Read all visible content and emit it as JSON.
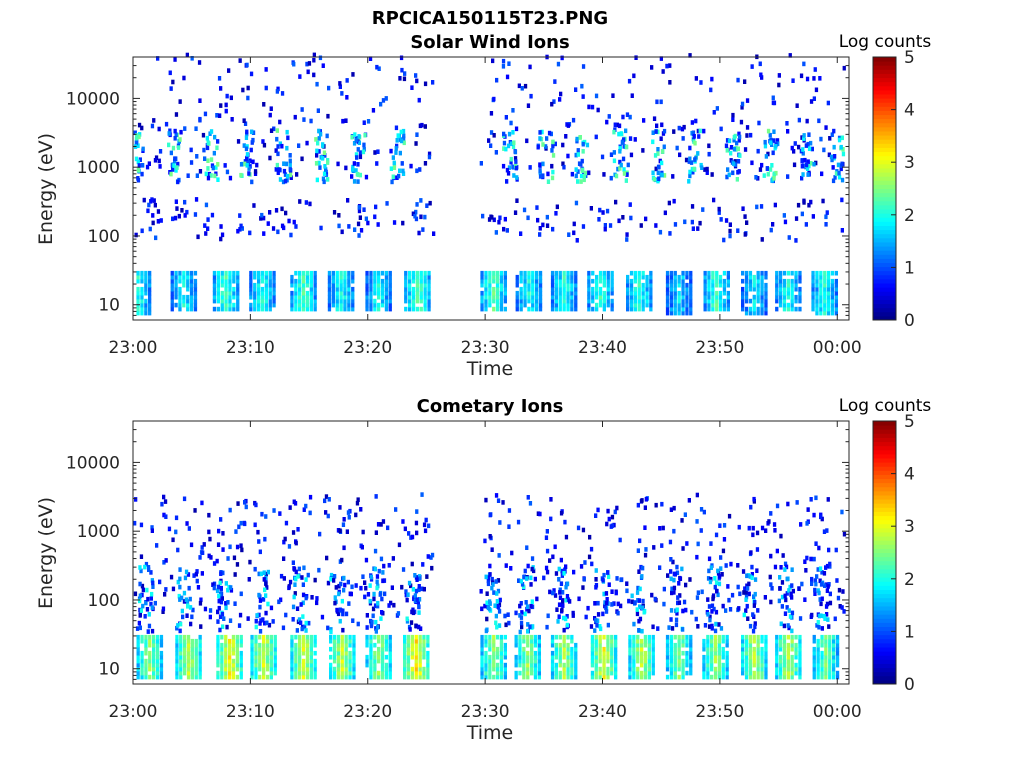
{
  "figure": {
    "title": "RPCICA150115T23.PNG"
  },
  "chart_data": [
    {
      "type": "heatmap",
      "title": "Solar Wind Ions",
      "xlabel": "Time",
      "ylabel": "Energy (eV)",
      "x_range": [
        "23:00",
        "00:01"
      ],
      "y_range_eV": [
        6,
        40000
      ],
      "y_scale": "log",
      "x_ticks": [
        "23:00",
        "23:10",
        "23:20",
        "23:30",
        "23:40",
        "23:50",
        "00:00"
      ],
      "y_ticks": [
        "10",
        "100",
        "1000",
        "10000"
      ],
      "colorbar": {
        "label": "Log counts",
        "range": [
          0,
          5
        ],
        "ticks": [
          "0",
          "1",
          "2",
          "3",
          "4",
          "5"
        ],
        "colormap": "jet"
      },
      "grid": false,
      "data_gap_minutes": [
        25.5,
        29.5
      ],
      "bursts": [
        {
          "t": 0.3,
          "e_low": 7,
          "e_high": 28,
          "level": 2.0
        },
        {
          "t": 4.2,
          "e_low": 8,
          "e_high": 28,
          "level": 1.9
        },
        {
          "t": 7.8,
          "e_low": 8,
          "e_high": 28,
          "level": 2.2
        },
        {
          "t": 10.9,
          "e_low": 8,
          "e_high": 28,
          "level": 2.0
        },
        {
          "t": 14.4,
          "e_low": 8,
          "e_high": 28,
          "level": 2.2
        },
        {
          "t": 17.6,
          "e_low": 8,
          "e_high": 28,
          "level": 2.0
        },
        {
          "t": 20.8,
          "e_low": 8,
          "e_high": 28,
          "level": 1.9
        },
        {
          "t": 24.1,
          "e_low": 8,
          "e_high": 28,
          "level": 2.3
        },
        {
          "t": 30.6,
          "e_low": 8,
          "e_high": 28,
          "level": 2.3
        },
        {
          "t": 33.6,
          "e_low": 8,
          "e_high": 28,
          "level": 1.9
        },
        {
          "t": 36.6,
          "e_low": 8,
          "e_high": 28,
          "level": 2.0
        },
        {
          "t": 39.7,
          "e_low": 8,
          "e_high": 28,
          "level": 2.1
        },
        {
          "t": 43.0,
          "e_low": 8,
          "e_high": 28,
          "level": 2.1
        },
        {
          "t": 46.4,
          "e_low": 7,
          "e_high": 28,
          "level": 1.7
        },
        {
          "t": 49.6,
          "e_low": 8,
          "e_high": 28,
          "level": 2.2
        },
        {
          "t": 52.8,
          "e_low": 7,
          "e_high": 28,
          "level": 1.8
        },
        {
          "t": 55.7,
          "e_low": 8,
          "e_high": 28,
          "level": 2.0
        },
        {
          "t": 58.8,
          "e_low": 7,
          "e_high": 28,
          "level": 2.0
        }
      ]
    },
    {
      "type": "heatmap",
      "title": "Cometary Ions",
      "xlabel": "Time",
      "ylabel": "Energy (eV)",
      "x_range": [
        "23:00",
        "00:01"
      ],
      "y_range_eV": [
        6,
        40000
      ],
      "y_scale": "log",
      "x_ticks": [
        "23:00",
        "23:10",
        "23:20",
        "23:30",
        "23:40",
        "23:50",
        "00:00"
      ],
      "y_ticks": [
        "10",
        "100",
        "1000",
        "10000"
      ],
      "colorbar": {
        "label": "Log counts",
        "range": [
          0,
          5
        ],
        "ticks": [
          "0",
          "1",
          "2",
          "3",
          "4",
          "5"
        ],
        "colormap": "jet"
      },
      "grid": false,
      "data_gap_minutes": [
        25.5,
        29.5
      ],
      "bursts": [
        {
          "t": 1.3,
          "e_low": 7,
          "e_high": 28,
          "level": 2.6
        },
        {
          "t": 4.6,
          "e_low": 7,
          "e_high": 28,
          "level": 2.8
        },
        {
          "t": 8.1,
          "e_low": 7,
          "e_high": 28,
          "level": 3.1
        },
        {
          "t": 11.0,
          "e_low": 7,
          "e_high": 28,
          "level": 2.9
        },
        {
          "t": 14.4,
          "e_low": 7,
          "e_high": 28,
          "level": 2.9
        },
        {
          "t": 17.7,
          "e_low": 7,
          "e_high": 28,
          "level": 2.8
        },
        {
          "t": 20.8,
          "e_low": 7,
          "e_high": 28,
          "level": 2.6
        },
        {
          "t": 24.0,
          "e_low": 7,
          "e_high": 28,
          "level": 3.2
        },
        {
          "t": 30.6,
          "e_low": 7,
          "e_high": 28,
          "level": 2.6
        },
        {
          "t": 33.5,
          "e_low": 7,
          "e_high": 28,
          "level": 2.6
        },
        {
          "t": 36.6,
          "e_low": 7,
          "e_high": 28,
          "level": 2.7
        },
        {
          "t": 40.0,
          "e_low": 7,
          "e_high": 28,
          "level": 3.0
        },
        {
          "t": 43.2,
          "e_low": 7,
          "e_high": 28,
          "level": 2.8
        },
        {
          "t": 46.4,
          "e_low": 7,
          "e_high": 28,
          "level": 2.5
        },
        {
          "t": 49.5,
          "e_low": 7,
          "e_high": 28,
          "level": 2.6
        },
        {
          "t": 52.8,
          "e_low": 7,
          "e_high": 28,
          "level": 2.8
        },
        {
          "t": 55.7,
          "e_low": 7,
          "e_high": 28,
          "level": 2.8
        },
        {
          "t": 58.9,
          "e_low": 7,
          "e_high": 28,
          "level": 2.4
        }
      ]
    }
  ]
}
